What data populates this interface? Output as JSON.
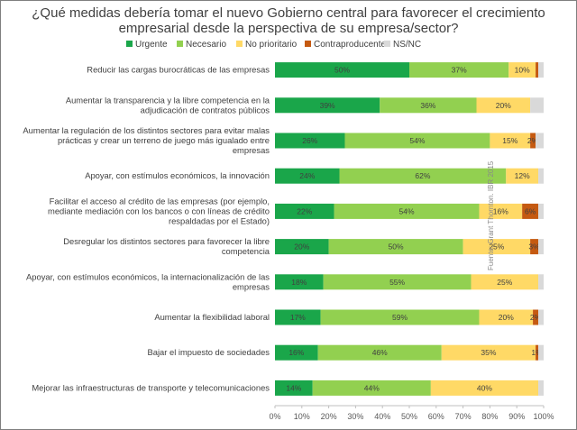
{
  "chart_data": {
    "type": "bar",
    "orientation": "horizontal",
    "stacked": true,
    "title_lines": [
      "¿Qué medidas debería tomar el nuevo Gobierno central para favorecer el crecimiento",
      "empresarial desde la perspectiva de su empresa/sector?"
    ],
    "source": "Fuente: Grant Thornton. IBR 2015",
    "legend_position": "top",
    "xlim": [
      0,
      100
    ],
    "xticks": [
      "0%",
      "10%",
      "20%",
      "30%",
      "40%",
      "50%",
      "60%",
      "70%",
      "80%",
      "90%",
      "100%"
    ],
    "categories": [
      [
        "Reducir las cargas burocráticas de las empresas"
      ],
      [
        "Aumentar la transparencia y la libre competencia en la",
        "adjudicación de contratos públicos"
      ],
      [
        "Aumentar la regulación de los distintos sectores para evitar malas",
        "prácticas y crear un terreno de juego más igualado entre",
        "empresas"
      ],
      [
        "Apoyar, con estímulos económicos, la innovación"
      ],
      [
        "Facilitar el acceso al crédito de las empresas (por ejemplo,",
        "mediante mediación con los bancos o con líneas de crédito",
        "respaldadas por el Estado)"
      ],
      [
        "Desregular los distintos sectores para favorecer la libre",
        "competencia"
      ],
      [
        "Apoyar, con estímulos económicos, la internacionalización de las",
        "empresas"
      ],
      [
        "Aumentar la flexibilidad laboral"
      ],
      [
        "Bajar el impuesto de sociedades"
      ],
      [
        "Mejorar las infraestructuras de transporte y telecomunicaciones"
      ]
    ],
    "series": [
      {
        "name": "Urgente",
        "color": "#1aa64a",
        "values": [
          50,
          39,
          26,
          24,
          22,
          20,
          18,
          17,
          16,
          14
        ]
      },
      {
        "name": "Necesario",
        "color": "#92d050",
        "values": [
          37,
          36,
          54,
          62,
          54,
          50,
          55,
          59,
          46,
          44
        ]
      },
      {
        "name": "No prioritario",
        "color": "#ffd966",
        "values": [
          10,
          20,
          15,
          12,
          16,
          25,
          25,
          20,
          35,
          40
        ]
      },
      {
        "name": "Contraproducente",
        "color": "#c55a11",
        "values": [
          1,
          0,
          2,
          0,
          6,
          3,
          0,
          2,
          1,
          0
        ]
      },
      {
        "name": "NS/NC",
        "color": "#d9d9d9",
        "values": [
          2,
          5,
          3,
          2,
          2,
          2,
          2,
          2,
          2,
          2
        ]
      }
    ],
    "data_labels": [
      [
        "50%",
        "37%",
        "10%",
        "",
        ""
      ],
      [
        "39%",
        "36%",
        "20%",
        "",
        ""
      ],
      [
        "26%",
        "54%",
        "15%",
        "2%",
        ""
      ],
      [
        "24%",
        "62%",
        "12%",
        "",
        ""
      ],
      [
        "22%",
        "54%",
        "16%",
        "6%",
        ""
      ],
      [
        "20%",
        "50%",
        "25%",
        "3%",
        ""
      ],
      [
        "18%",
        "55%",
        "25%",
        "",
        ""
      ],
      [
        "17%",
        "59%",
        "20%",
        "2%",
        ""
      ],
      [
        "16%",
        "46%",
        "35%",
        "1%",
        ""
      ],
      [
        "14%",
        "44%",
        "40%",
        "",
        ""
      ]
    ]
  }
}
